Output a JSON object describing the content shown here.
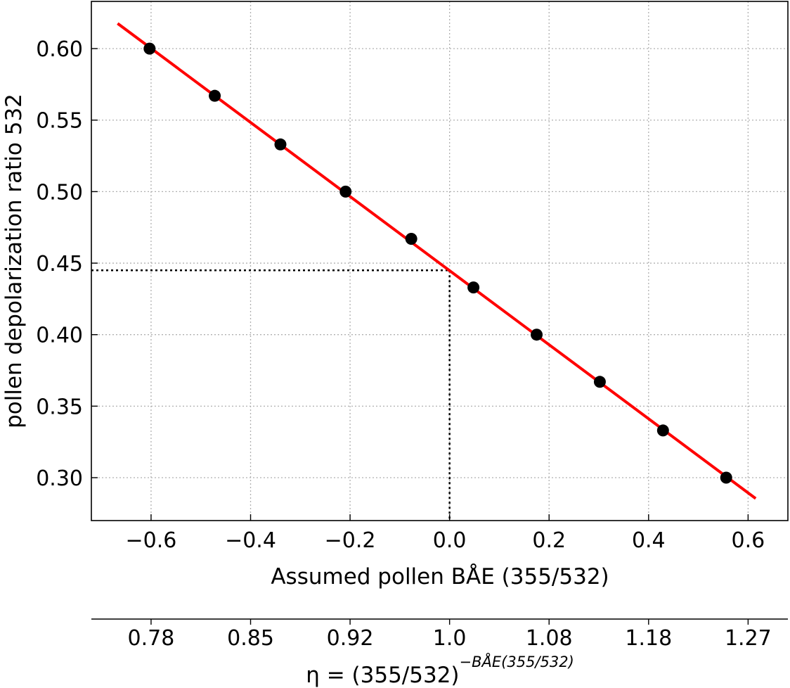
{
  "chart_data": {
    "type": "scatter",
    "xlabel": "Assumed pollen BÅE (355/532)",
    "ylabel": "pollen depolarization ratio 532",
    "xlim": [
      -0.72,
      0.68
    ],
    "ylim": [
      0.27,
      0.633
    ],
    "x_ticks": [
      -0.6,
      -0.4,
      -0.2,
      0.0,
      0.2,
      0.4,
      0.6
    ],
    "x_tick_labels": [
      "−0.6",
      "−0.4",
      "−0.2",
      "0.0",
      "0.2",
      "0.4",
      "0.6"
    ],
    "y_ticks": [
      0.3,
      0.35,
      0.4,
      0.45,
      0.5,
      0.55,
      0.6
    ],
    "y_tick_labels": [
      "0.30",
      "0.35",
      "0.40",
      "0.45",
      "0.50",
      "0.55",
      "0.60"
    ],
    "grid": true,
    "grid_style": "dotted",
    "series": [
      {
        "kind": "points",
        "color": "#000000",
        "x": [
          -0.603,
          -0.472,
          -0.34,
          -0.209,
          -0.077,
          0.048,
          0.175,
          0.302,
          0.429,
          0.556
        ],
        "y": [
          0.6,
          0.567,
          0.533,
          0.5,
          0.467,
          0.433,
          0.4,
          0.367,
          0.333,
          0.3
        ]
      },
      {
        "kind": "fit-line",
        "color": "#ff0000",
        "x": [
          -0.665,
          0.613
        ],
        "y": [
          0.617,
          0.286
        ]
      }
    ],
    "reference_lines": {
      "color": "#000000",
      "x": 0.0,
      "y": 0.445
    },
    "secondary_x_axis": {
      "tick_labels": [
        "0.78",
        "0.85",
        "0.92",
        "1.0",
        "1.08",
        "1.18",
        "1.27"
      ],
      "tick_positions": [
        -0.6,
        -0.4,
        -0.2,
        0.0,
        0.2,
        0.4,
        0.6
      ],
      "label_prefix": "η = (355/532)",
      "label_superscript": "−BÅE(355/532)"
    }
  }
}
